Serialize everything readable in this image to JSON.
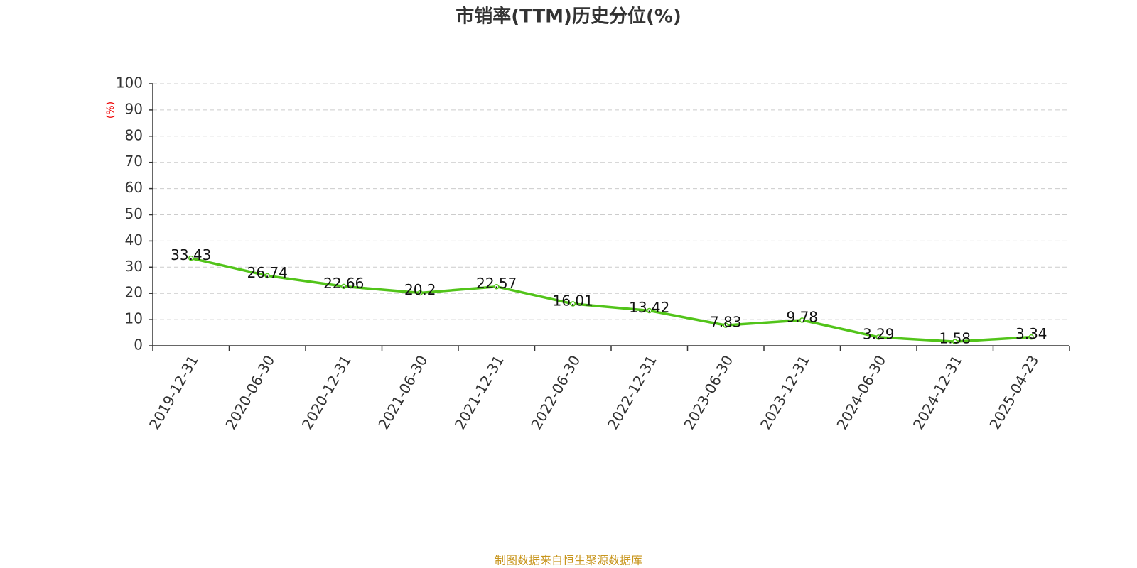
{
  "chart_data": {
    "type": "line",
    "title": "市销率(TTM)历史分位(%)",
    "y_label": "(%)",
    "source": "制图数据来自恒生聚源数据库",
    "categories": [
      "2019-12-31",
      "2020-06-30",
      "2020-12-31",
      "2021-06-30",
      "2021-12-31",
      "2022-06-30",
      "2022-12-31",
      "2023-06-30",
      "2023-12-31",
      "2024-06-30",
      "2024-12-31",
      "2025-04-23"
    ],
    "values": [
      33.43,
      26.74,
      22.66,
      20.2,
      22.57,
      16.01,
      13.42,
      7.83,
      9.78,
      3.29,
      1.58,
      3.34
    ],
    "color": "#52c41a",
    "ylim": [
      0,
      100
    ],
    "yticks": [
      0,
      10,
      20,
      30,
      40,
      50,
      60,
      70,
      80,
      90,
      100
    ],
    "grid": true
  }
}
